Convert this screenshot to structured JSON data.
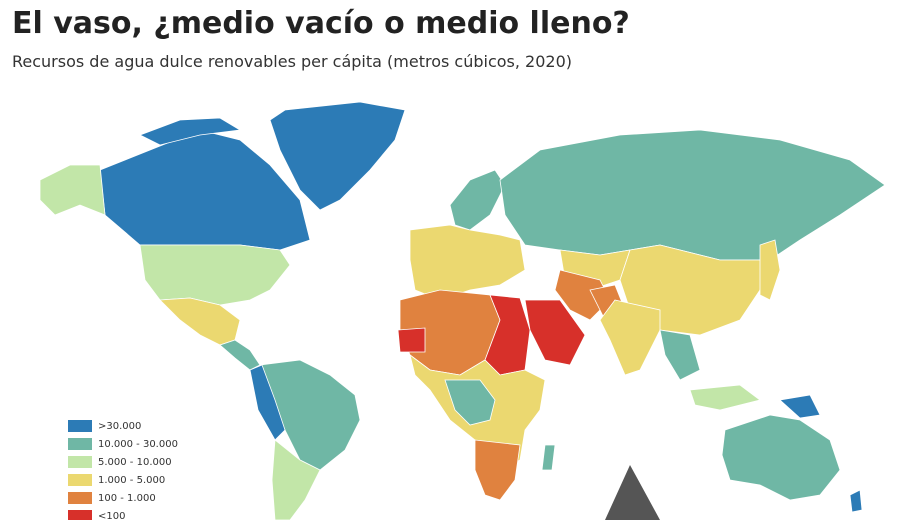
{
  "title": "El vaso, ¿medio vacío o medio lleno?",
  "subtitle": "Recursos de agua dulce renovables per cápita (metros cúbicos, 2020)",
  "legend": [
    {
      "label": ">30.000",
      "color": "#2c7bb6"
    },
    {
      "label": "10.000 - 30.000",
      "color": "#6fb7a5"
    },
    {
      "label": "5.000 - 10.000",
      "color": "#c2e6a8"
    },
    {
      "label": "1.000 - 5.000",
      "color": "#ebd870"
    },
    {
      "label": "100 - 1.000",
      "color": "#e0823f"
    },
    {
      "label": "<100",
      "color": "#d7302a"
    }
  ]
}
